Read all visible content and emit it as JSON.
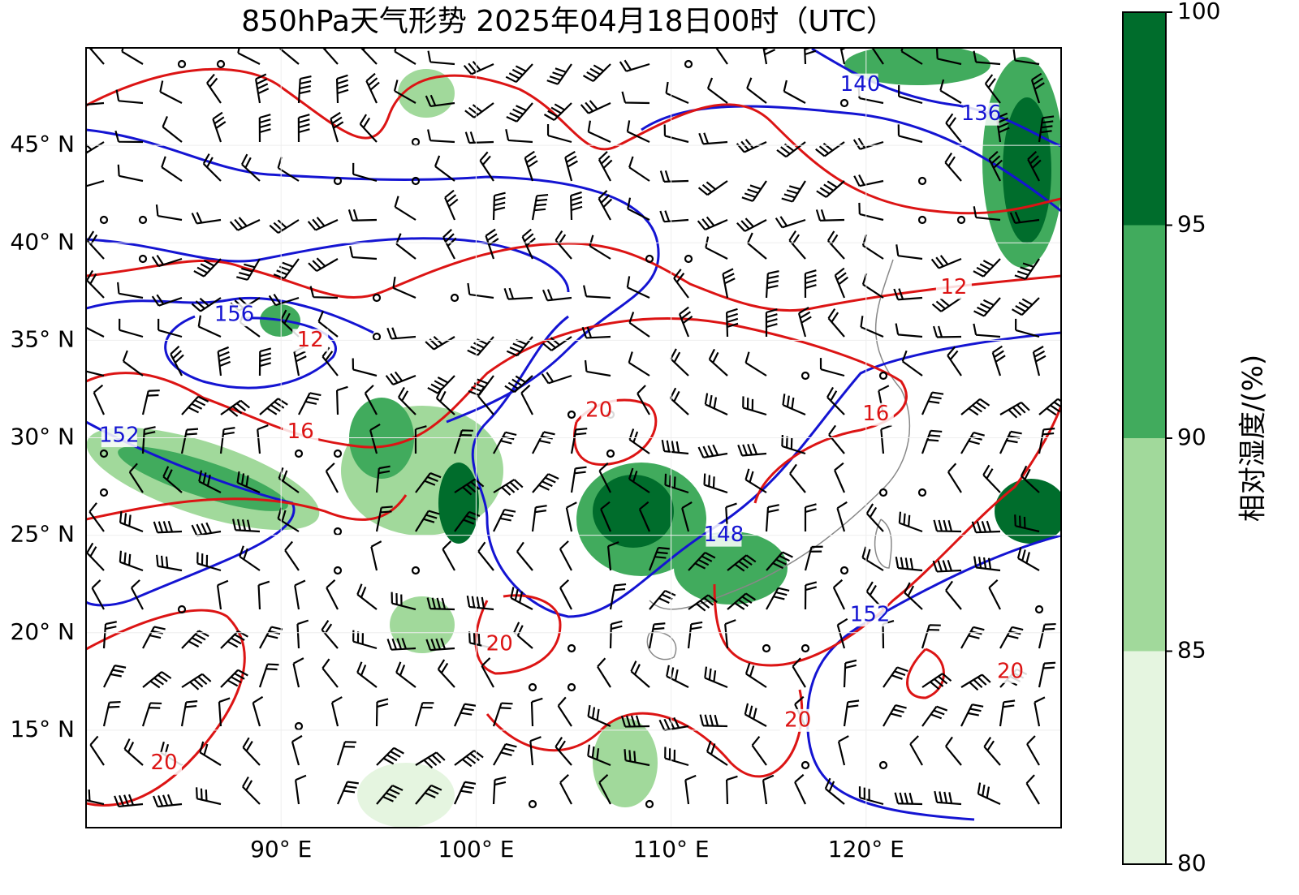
{
  "title": "850hPa天气形势 2025年04月18日00时（UTC）",
  "map": {
    "lonlim": [
      80,
      130
    ],
    "latlim": [
      10,
      50
    ],
    "xticks": [
      {
        "value": 90,
        "label": "90° E"
      },
      {
        "value": 100,
        "label": "100° E"
      },
      {
        "value": 110,
        "label": "110° E"
      },
      {
        "value": 120,
        "label": "120° E"
      }
    ],
    "yticks": [
      {
        "value": 45,
        "label": "45° N"
      },
      {
        "value": 40,
        "label": "40° N"
      },
      {
        "value": 35,
        "label": "35° N"
      },
      {
        "value": 30,
        "label": "30° N"
      },
      {
        "value": 25,
        "label": "25° N"
      },
      {
        "value": 20,
        "label": "20° N"
      },
      {
        "value": 15,
        "label": "15° N"
      }
    ],
    "grid": true,
    "height_contours": {
      "color": "#1414d2",
      "labels": [
        {
          "value": 156,
          "lon": 87.6,
          "lat": 36.3
        },
        {
          "value": 152,
          "lon": 81.7,
          "lat": 30.1
        },
        {
          "value": 148,
          "lon": 112.7,
          "lat": 25.0
        },
        {
          "value": 152,
          "lon": 120.2,
          "lat": 20.9
        },
        {
          "value": 140,
          "lon": 119.7,
          "lat": 48.1
        },
        {
          "value": 136,
          "lon": 125.9,
          "lat": 46.6
        }
      ]
    },
    "temperature_contours": {
      "color": "#dc1414",
      "labels": [
        {
          "value": 12,
          "lon": 91.5,
          "lat": 35.0
        },
        {
          "value": 12,
          "lon": 124.5,
          "lat": 37.7
        },
        {
          "value": 16,
          "lon": 91.0,
          "lat": 30.3
        },
        {
          "value": 16,
          "lon": 120.5,
          "lat": 31.2
        },
        {
          "value": 20,
          "lon": 106.3,
          "lat": 31.4
        },
        {
          "value": 20,
          "lon": 101.2,
          "lat": 19.4
        },
        {
          "value": 20,
          "lon": 127.4,
          "lat": 18.0
        },
        {
          "value": 20,
          "lon": 116.5,
          "lat": 15.5
        },
        {
          "value": 20,
          "lon": 84.0,
          "lat": 13.3
        }
      ]
    }
  },
  "colorbar": {
    "label": "相对湿度/(%)",
    "lim": [
      80,
      100
    ],
    "ticks": [
      80,
      85,
      90,
      95,
      100
    ],
    "colors": [
      "#e5f5e0",
      "#a1d99b",
      "#41ab5d",
      "#006d2c"
    ]
  }
}
